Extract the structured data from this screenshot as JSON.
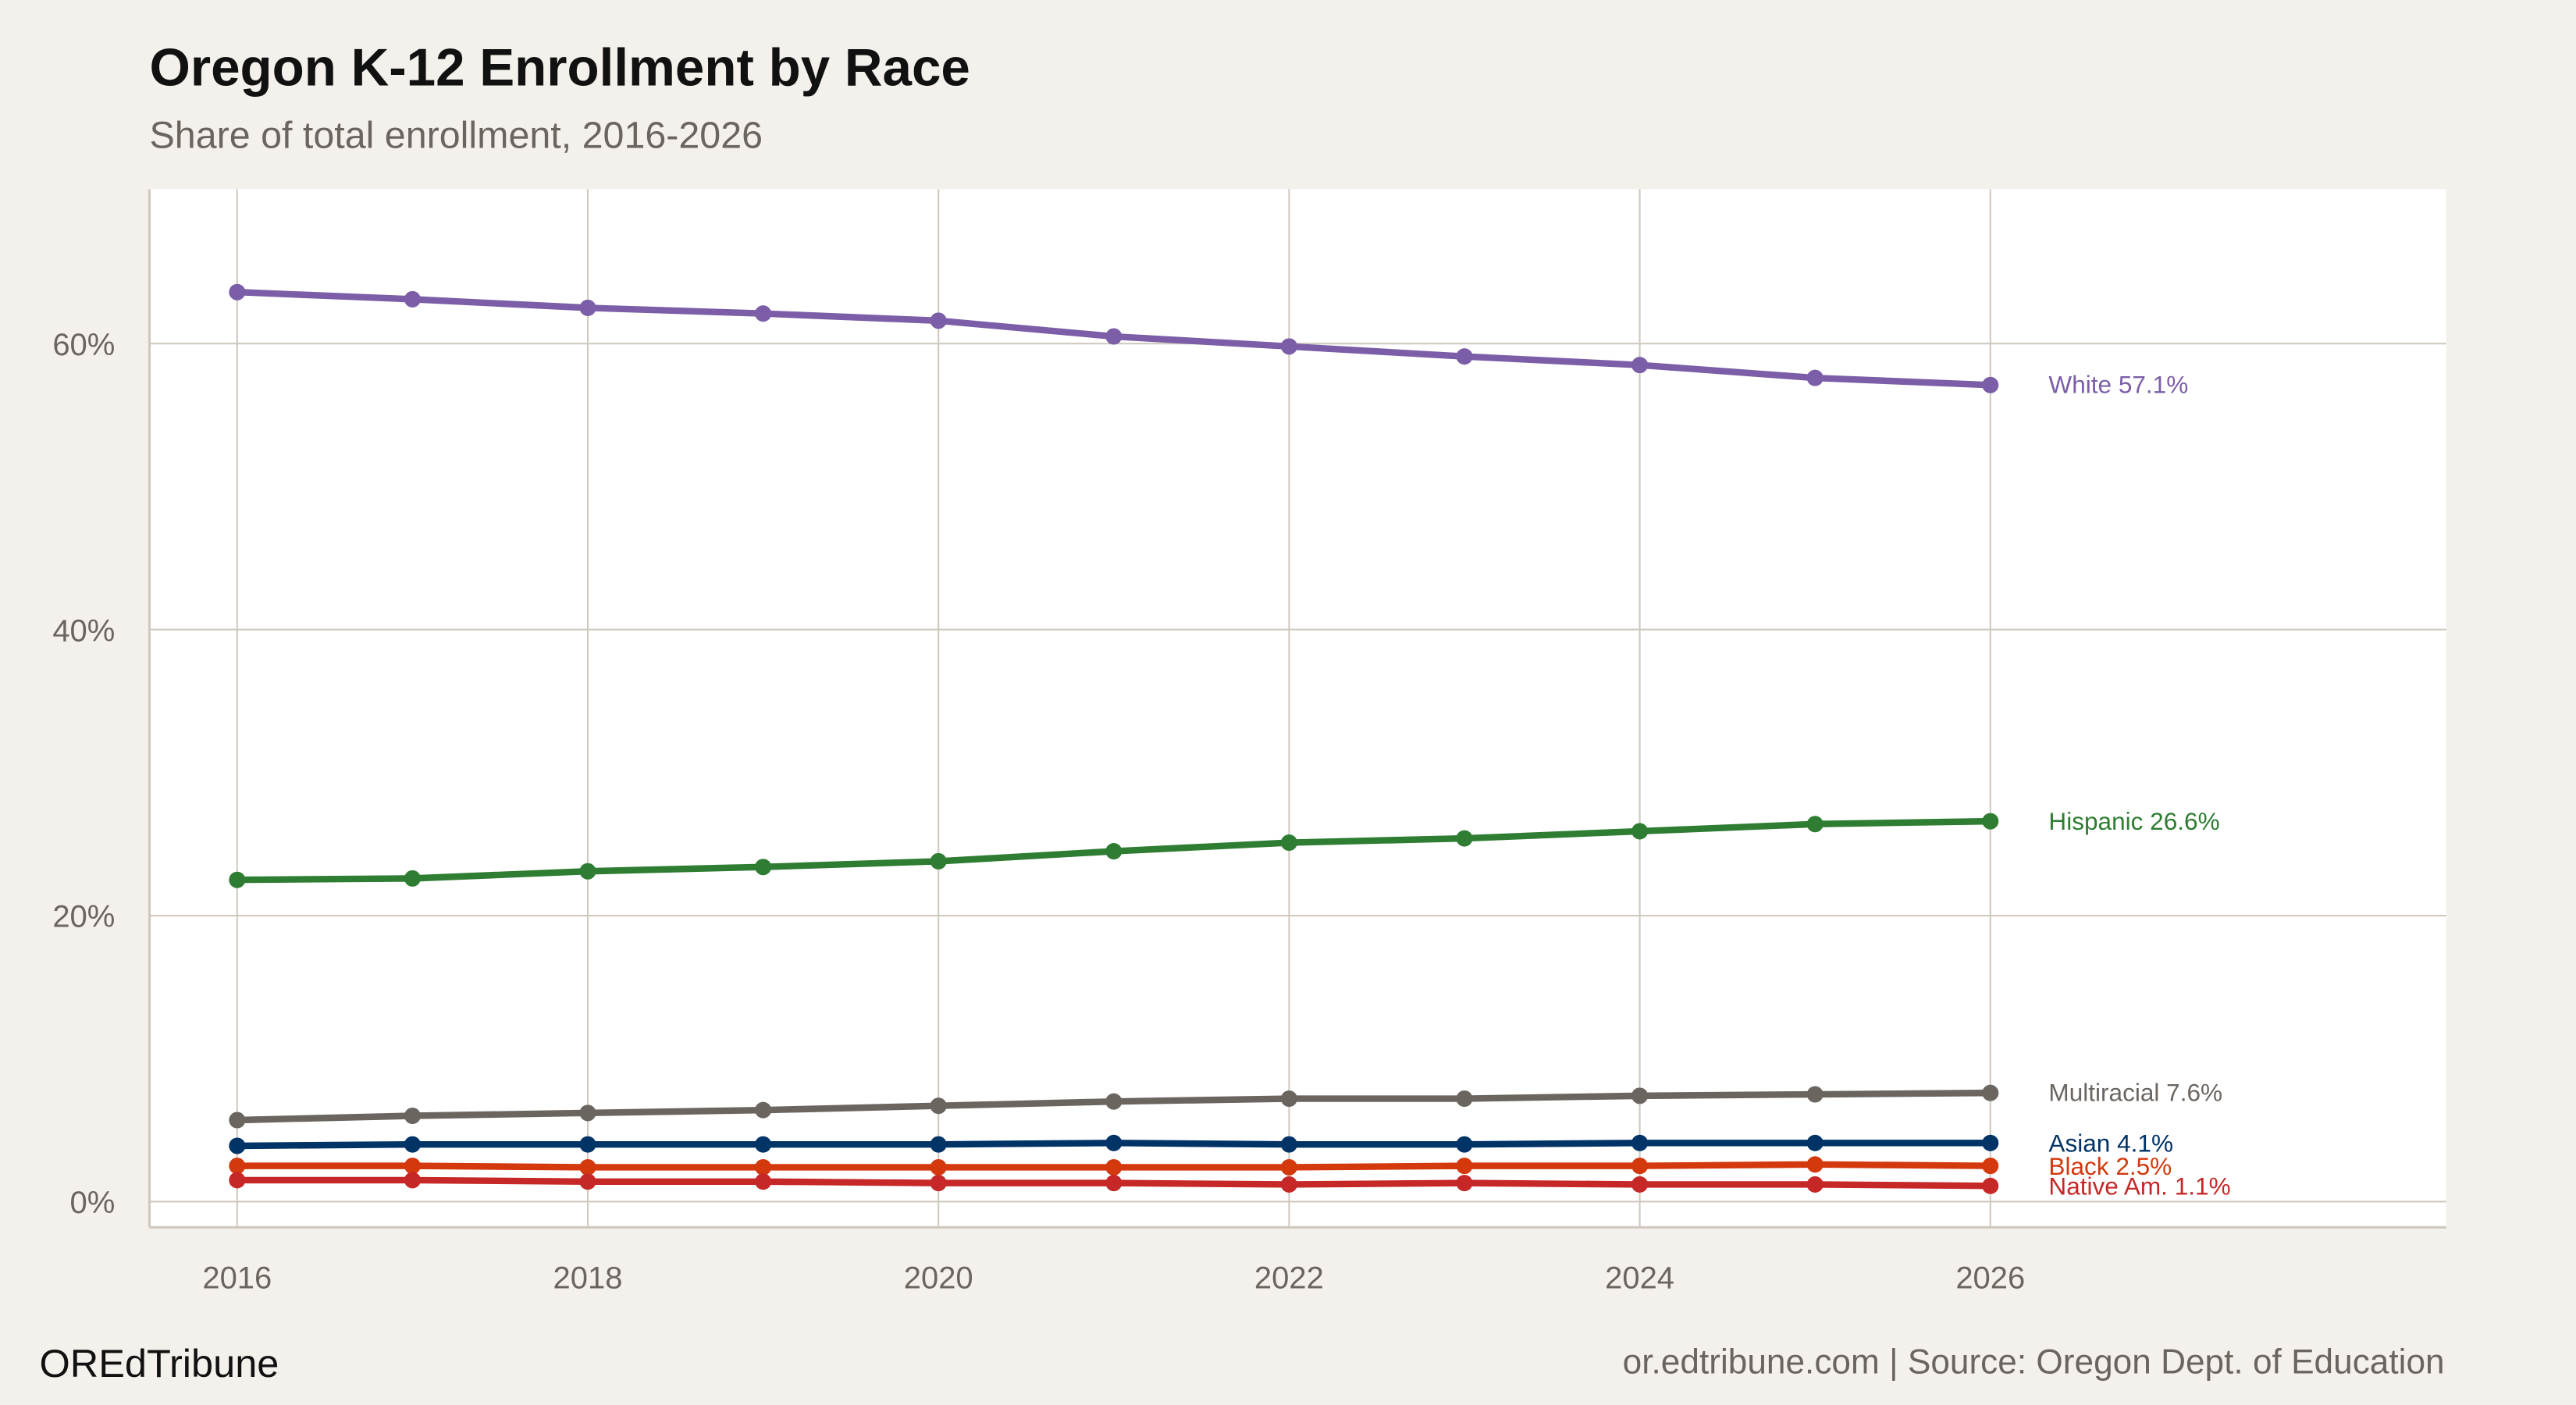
{
  "title": "Oregon K-12 Enrollment by Race",
  "subtitle": "Share of total enrollment, 2016-2026",
  "footer_left": "OREdTribune",
  "footer_right": "or.edtribune.com | Source: Oregon Dept. of Education",
  "chart_data": {
    "type": "line",
    "title": "Oregon K-12 Enrollment by Race",
    "subtitle": "Share of total enrollment, 2016-2026",
    "xlabel": "",
    "ylabel": "",
    "x": [
      2016,
      2017,
      2018,
      2019,
      2020,
      2021,
      2022,
      2023,
      2024,
      2025,
      2026
    ],
    "xticks": [
      "2016",
      "2018",
      "2020",
      "2022",
      "2024",
      "2026"
    ],
    "yticks": [
      "0%",
      "20%",
      "40%",
      "60%"
    ],
    "xlim": [
      2015.5,
      2028.6
    ],
    "ylim": [
      -1.8,
      70.8
    ],
    "grid": true,
    "legend": "direct labels at line ends",
    "series": [
      {
        "name": "White",
        "end_label": "White 57.1%",
        "color": "#7b5ea7",
        "values": [
          63.6,
          63.1,
          62.5,
          62.1,
          61.6,
          60.5,
          59.8,
          59.1,
          58.5,
          57.6,
          57.1
        ]
      },
      {
        "name": "Hispanic",
        "end_label": "Hispanic 26.6%",
        "color": "#2e7d32",
        "values": [
          22.5,
          22.6,
          23.1,
          23.4,
          23.8,
          24.5,
          25.1,
          25.4,
          25.9,
          26.4,
          26.6
        ]
      },
      {
        "name": "Multiracial",
        "end_label": "Multiracial 7.6%",
        "color": "#6b6560",
        "values": [
          5.7,
          6.0,
          6.2,
          6.4,
          6.7,
          7.0,
          7.2,
          7.2,
          7.4,
          7.5,
          7.6
        ]
      },
      {
        "name": "Asian",
        "end_label": "Asian 4.1%",
        "color": "#003366",
        "values": [
          3.9,
          4.0,
          4.0,
          4.0,
          4.0,
          4.1,
          4.0,
          4.0,
          4.1,
          4.1,
          4.1
        ]
      },
      {
        "name": "Black",
        "end_label": "Black 2.5%",
        "color": "#d4380d",
        "values": [
          2.5,
          2.5,
          2.4,
          2.4,
          2.4,
          2.4,
          2.4,
          2.5,
          2.5,
          2.6,
          2.5
        ]
      },
      {
        "name": "Native Am.",
        "end_label": "Native Am. 1.1%",
        "color": "#c62828",
        "values": [
          1.5,
          1.5,
          1.4,
          1.4,
          1.3,
          1.3,
          1.2,
          1.3,
          1.2,
          1.2,
          1.1
        ]
      }
    ]
  }
}
